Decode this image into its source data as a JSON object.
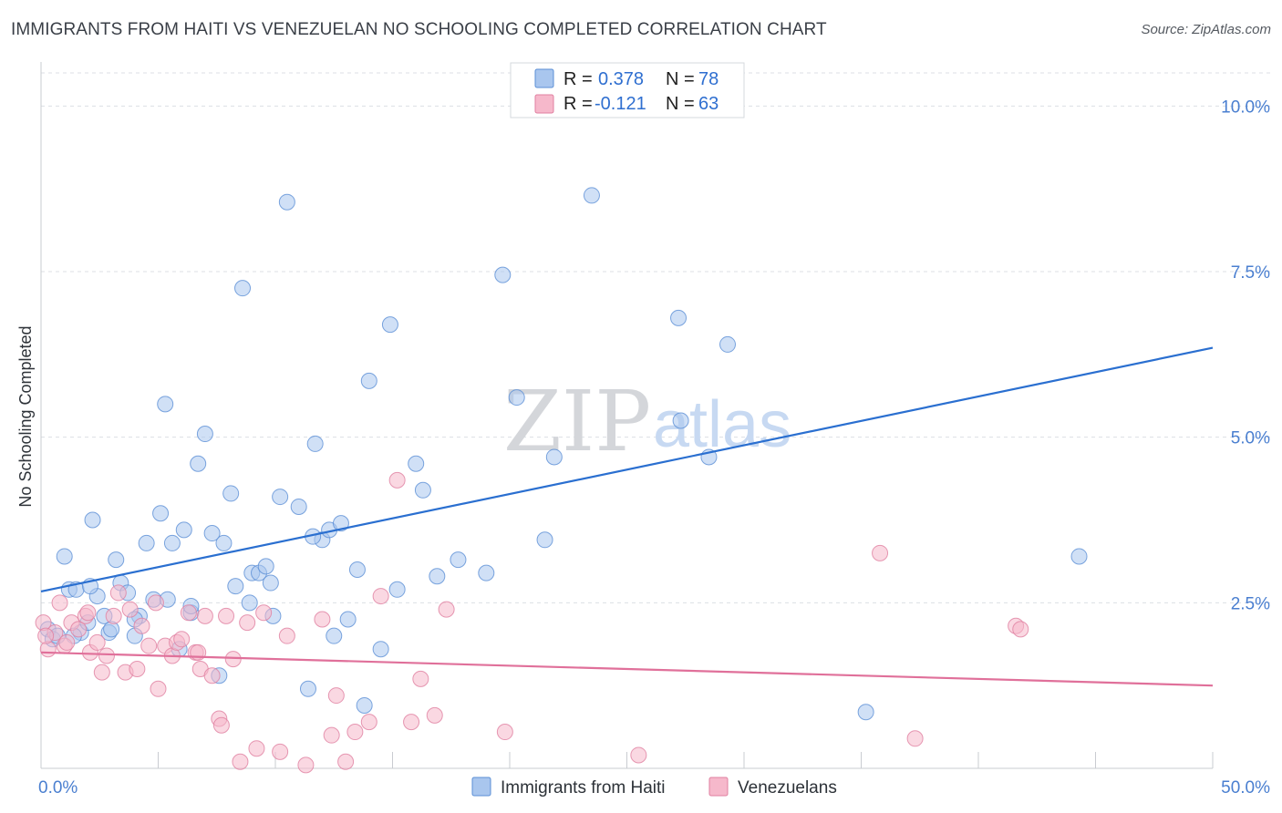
{
  "title": "IMMIGRANTS FROM HAITI VS VENEZUELAN NO SCHOOLING COMPLETED CORRELATION CHART",
  "source": "Source: ZipAtlas.com",
  "watermark": {
    "zip": "ZIP",
    "atlas": "atlas"
  },
  "legend": {
    "r_label": "R =",
    "n_label": "N =",
    "items": [
      {
        "r": "0.378",
        "n": "78"
      },
      {
        "r": "-0.121",
        "n": "63"
      }
    ]
  },
  "bottom_legend": [
    "Immigrants from Haiti",
    "Venezuelans"
  ],
  "colors": {
    "haiti_fill": "#a9c6ee",
    "haiti_stroke": "#5b8fd6",
    "haiti_line": "#2a6fd0",
    "ven_fill": "#f6b8cb",
    "ven_stroke": "#e07fa0",
    "ven_line": "#e0709a",
    "grid": "#dcdfe4",
    "tick_text": "#4a7fd0"
  },
  "chart_data": {
    "type": "scatter",
    "title": "IMMIGRANTS FROM HAITI VS VENEZUELAN NO SCHOOLING COMPLETED CORRELATION CHART",
    "xlabel": "",
    "ylabel": "No Schooling Completed",
    "xlim": [
      0,
      50
    ],
    "ylim": [
      0,
      10.5
    ],
    "x_tick_labels": [
      "0.0%",
      "50.0%"
    ],
    "y_ticks": [
      2.5,
      5.0,
      7.5,
      10.0
    ],
    "y_tick_labels": [
      "2.5%",
      "5.0%",
      "7.5%",
      "10.0%"
    ],
    "grid": "horizontal dashed",
    "legend_position": "top-center",
    "series": [
      {
        "name": "Immigrants from Haiti",
        "r": 0.378,
        "n": 78,
        "trend": [
          [
            0,
            2.67
          ],
          [
            50,
            6.35
          ]
        ],
        "points": [
          [
            0.3,
            2.1
          ],
          [
            0.5,
            1.95
          ],
          [
            0.7,
            2.0
          ],
          [
            1.0,
            3.2
          ],
          [
            1.2,
            2.7
          ],
          [
            1.5,
            2.7
          ],
          [
            1.7,
            2.05
          ],
          [
            2.0,
            2.2
          ],
          [
            2.2,
            3.75
          ],
          [
            2.4,
            2.6
          ],
          [
            2.7,
            2.3
          ],
          [
            2.9,
            2.05
          ],
          [
            3.2,
            3.15
          ],
          [
            3.4,
            2.8
          ],
          [
            3.7,
            2.65
          ],
          [
            4.0,
            2.0
          ],
          [
            4.2,
            2.3
          ],
          [
            4.5,
            3.4
          ],
          [
            4.8,
            2.55
          ],
          [
            5.1,
            3.85
          ],
          [
            5.4,
            2.55
          ],
          [
            5.6,
            3.4
          ],
          [
            5.9,
            1.8
          ],
          [
            6.1,
            3.6
          ],
          [
            6.4,
            2.35
          ],
          [
            6.7,
            4.6
          ],
          [
            7.0,
            5.05
          ],
          [
            7.3,
            3.55
          ],
          [
            7.6,
            1.4
          ],
          [
            7.8,
            3.4
          ],
          [
            8.1,
            4.15
          ],
          [
            8.3,
            2.75
          ],
          [
            8.6,
            7.25
          ],
          [
            9.0,
            2.95
          ],
          [
            9.3,
            2.95
          ],
          [
            9.6,
            3.05
          ],
          [
            9.9,
            2.3
          ],
          [
            10.2,
            4.1
          ],
          [
            10.5,
            8.55
          ],
          [
            11.0,
            3.95
          ],
          [
            11.4,
            1.2
          ],
          [
            11.7,
            4.9
          ],
          [
            12.0,
            3.45
          ],
          [
            12.3,
            3.6
          ],
          [
            12.8,
            3.7
          ],
          [
            13.1,
            2.25
          ],
          [
            13.5,
            3.0
          ],
          [
            13.8,
            0.95
          ],
          [
            14.0,
            5.85
          ],
          [
            14.5,
            1.8
          ],
          [
            14.9,
            6.7
          ],
          [
            15.2,
            2.7
          ],
          [
            16.0,
            4.6
          ],
          [
            16.3,
            4.2
          ],
          [
            16.9,
            2.9
          ],
          [
            17.8,
            3.15
          ],
          [
            19.0,
            2.95
          ],
          [
            19.7,
            7.45
          ],
          [
            20.3,
            5.6
          ],
          [
            21.5,
            3.45
          ],
          [
            21.9,
            4.7
          ],
          [
            23.5,
            8.65
          ],
          [
            27.2,
            6.8
          ],
          [
            27.3,
            5.25
          ],
          [
            28.5,
            4.7
          ],
          [
            29.3,
            6.4
          ],
          [
            35.2,
            0.85
          ],
          [
            44.3,
            3.2
          ],
          [
            5.3,
            5.5
          ],
          [
            6.4,
            2.45
          ],
          [
            8.9,
            2.5
          ],
          [
            9.8,
            2.8
          ],
          [
            11.6,
            3.5
          ],
          [
            4.0,
            2.25
          ],
          [
            3.0,
            2.1
          ],
          [
            12.5,
            2.0
          ],
          [
            2.1,
            2.75
          ],
          [
            1.4,
            2.0
          ]
        ]
      },
      {
        "name": "Venezuelans",
        "r": -0.121,
        "n": 63,
        "trend": [
          [
            0,
            1.75
          ],
          [
            50,
            1.25
          ]
        ],
        "points": [
          [
            0.1,
            2.2
          ],
          [
            0.3,
            1.8
          ],
          [
            0.6,
            2.05
          ],
          [
            0.8,
            2.5
          ],
          [
            1.0,
            1.85
          ],
          [
            1.3,
            2.2
          ],
          [
            1.6,
            2.1
          ],
          [
            1.9,
            2.3
          ],
          [
            2.1,
            1.75
          ],
          [
            2.4,
            1.9
          ],
          [
            2.6,
            1.45
          ],
          [
            2.8,
            1.7
          ],
          [
            3.1,
            2.3
          ],
          [
            3.3,
            2.65
          ],
          [
            3.6,
            1.45
          ],
          [
            3.8,
            2.4
          ],
          [
            4.1,
            1.5
          ],
          [
            4.3,
            2.15
          ],
          [
            4.6,
            1.85
          ],
          [
            4.9,
            2.5
          ],
          [
            5.0,
            1.2
          ],
          [
            5.3,
            1.85
          ],
          [
            5.6,
            1.7
          ],
          [
            5.8,
            1.9
          ],
          [
            6.0,
            1.95
          ],
          [
            6.3,
            2.35
          ],
          [
            6.6,
            1.75
          ],
          [
            6.8,
            1.5
          ],
          [
            7.0,
            2.3
          ],
          [
            7.3,
            1.4
          ],
          [
            7.6,
            0.75
          ],
          [
            7.9,
            2.3
          ],
          [
            8.2,
            1.65
          ],
          [
            8.5,
            0.1
          ],
          [
            8.8,
            2.2
          ],
          [
            9.2,
            0.3
          ],
          [
            9.5,
            2.35
          ],
          [
            10.2,
            0.25
          ],
          [
            10.5,
            2.0
          ],
          [
            11.3,
            0.05
          ],
          [
            12.0,
            2.25
          ],
          [
            12.4,
            0.5
          ],
          [
            12.6,
            1.1
          ],
          [
            13.0,
            0.1
          ],
          [
            13.4,
            0.55
          ],
          [
            14.0,
            0.7
          ],
          [
            14.5,
            2.6
          ],
          [
            15.2,
            4.35
          ],
          [
            15.8,
            0.7
          ],
          [
            16.2,
            1.35
          ],
          [
            16.8,
            0.8
          ],
          [
            17.3,
            2.4
          ],
          [
            19.8,
            0.55
          ],
          [
            25.5,
            0.2
          ],
          [
            35.8,
            3.25
          ],
          [
            37.3,
            0.45
          ],
          [
            41.6,
            2.15
          ],
          [
            41.8,
            2.1
          ],
          [
            0.2,
            2.0
          ],
          [
            1.1,
            1.9
          ],
          [
            6.7,
            1.75
          ],
          [
            2.0,
            2.35
          ],
          [
            7.7,
            0.65
          ]
        ]
      }
    ]
  }
}
